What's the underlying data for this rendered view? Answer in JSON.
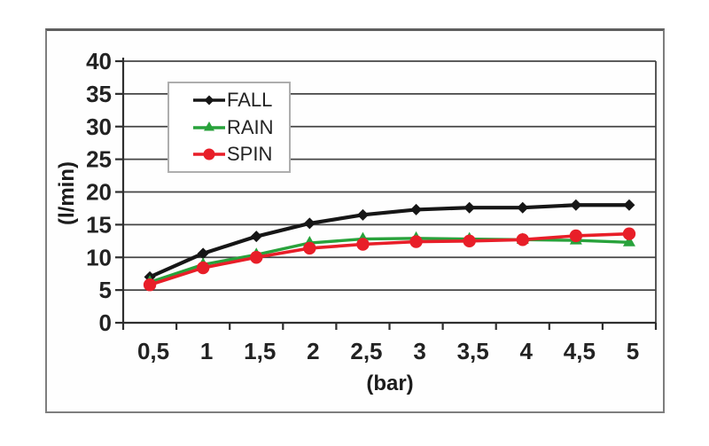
{
  "chart_data": {
    "type": "line",
    "categories": [
      "0,5",
      "1",
      "1,5",
      "2",
      "2,5",
      "3",
      "3,5",
      "4",
      "4,5",
      "5"
    ],
    "series": [
      {
        "name": "FALL",
        "color": "#161616",
        "marker": "diamond",
        "values": [
          7.0,
          10.6,
          13.2,
          15.2,
          16.5,
          17.3,
          17.6,
          17.6,
          18.0,
          18.0
        ]
      },
      {
        "name": "RAIN",
        "color": "#28a23b",
        "marker": "triangle",
        "values": [
          6.2,
          8.9,
          10.4,
          12.2,
          12.8,
          12.9,
          12.8,
          12.7,
          12.6,
          12.3
        ]
      },
      {
        "name": "SPIN",
        "color": "#e81e28",
        "marker": "circle",
        "values": [
          5.8,
          8.4,
          10.0,
          11.4,
          12.0,
          12.4,
          12.5,
          12.7,
          13.3,
          13.6
        ]
      }
    ],
    "xlabel": "(bar)",
    "ylabel": "(l/min)",
    "y_ticks": [
      0,
      5,
      10,
      15,
      20,
      25,
      30,
      35,
      40
    ],
    "ylim": [
      0,
      40
    ],
    "grid": true,
    "legend_position": "inside-top-left",
    "axis_color": "#2e2e2e",
    "grid_color": "#454545",
    "tick_label_color": "#222222"
  }
}
